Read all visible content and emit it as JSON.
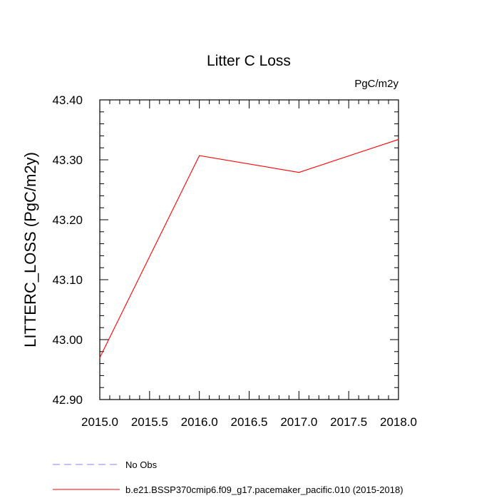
{
  "chart_data": {
    "type": "line",
    "title": "Litter C Loss",
    "units_label": "PgC/m2y",
    "ylabel": "LITTERC_LOSS  (PgC/m2y)",
    "xlabel": "",
    "xlim": [
      2015.0,
      2018.0
    ],
    "ylim": [
      42.9,
      43.4
    ],
    "x_ticks": [
      "2015.0",
      "2015.5",
      "2016.0",
      "2016.5",
      "2017.0",
      "2017.5",
      "2018.0"
    ],
    "y_ticks": [
      "42.90",
      "43.00",
      "43.10",
      "43.20",
      "43.30",
      "43.40"
    ],
    "grid": false,
    "series": [
      {
        "name": "b.e21.BSSP370cmip6.f09_g17.pacemaker_pacific.010 (2015-2018)",
        "color": "#ff0000",
        "line_style": "solid",
        "x": [
          2015.0,
          2016.0,
          2017.0,
          2018.0
        ],
        "y": [
          42.97,
          43.307,
          43.279,
          43.334
        ]
      }
    ],
    "legend": {
      "placement": "bottom-left",
      "entries": [
        {
          "label": "No Obs",
          "color": "#8080ff",
          "line_style": "dashed"
        },
        {
          "label": "b.e21.BSSP370cmip6.f09_g17.pacemaker_pacific.010 (2015-2018)",
          "color": "#ff0000",
          "line_style": "solid"
        }
      ]
    }
  }
}
